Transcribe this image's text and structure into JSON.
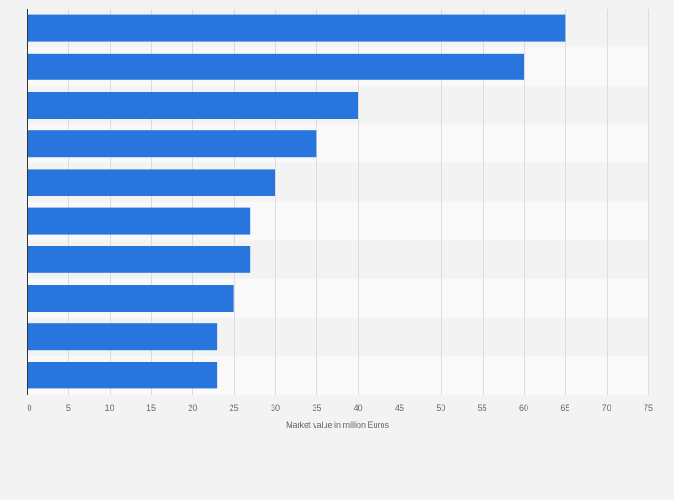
{
  "chart_data": {
    "type": "bar",
    "orientation": "horizontal",
    "categories": [
      "",
      "",
      "",
      "",
      "",
      "",
      "",
      "",
      "",
      ""
    ],
    "values": [
      65,
      60,
      40,
      35,
      30,
      27,
      27,
      25,
      23,
      23
    ],
    "xlabel": "Market value in million Euros",
    "ylabel": "",
    "xlim": [
      0,
      75
    ],
    "xticks": [
      0,
      5,
      10,
      15,
      20,
      25,
      30,
      35,
      40,
      45,
      50,
      55,
      60,
      65,
      70,
      75
    ],
    "grid": true,
    "legend": "none"
  },
  "colors": {
    "bar": "#2876dd",
    "page_background": "#f3f3f3",
    "plot_band_light": "#f9f9f9",
    "plot_band_dark": "#f3f3f3",
    "grid_line": "#dcdcdc",
    "axis_line": "#333333",
    "label_text": "#666666"
  }
}
